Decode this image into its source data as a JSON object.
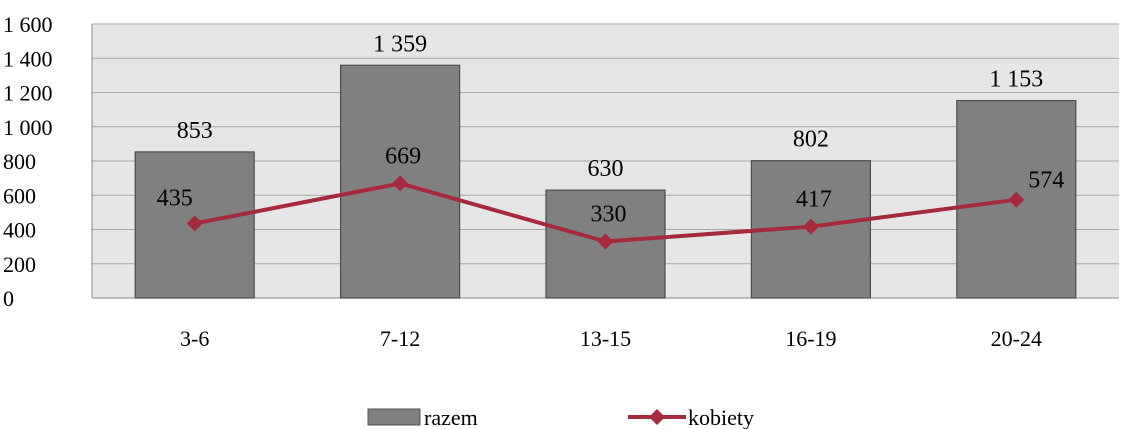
{
  "chart_data": {
    "type": "bar",
    "categories": [
      "3-6",
      "7-12",
      "13-15",
      "16-19",
      "20-24"
    ],
    "series": [
      {
        "name": "razem",
        "type": "bar",
        "values": [
          853,
          1359,
          630,
          802,
          1153
        ],
        "labels": [
          "853",
          "1 359",
          "630",
          "802",
          "1 153"
        ],
        "color": "#808080"
      },
      {
        "name": "kobiety",
        "type": "line",
        "marker": "diamond",
        "values": [
          435,
          669,
          330,
          417,
          574
        ],
        "labels": [
          "435",
          "669",
          "330",
          "417",
          "574"
        ],
        "color": "#A52A3C"
      }
    ],
    "ylim": [
      0,
      1600
    ],
    "yticks": [
      0,
      200,
      400,
      600,
      800,
      1000,
      1200,
      1400,
      1600
    ],
    "ytick_labels": [
      "0",
      "200",
      "400",
      "600",
      "800",
      "1 000",
      "1 200",
      "1 400",
      "1 600"
    ],
    "grid": true,
    "plot_background": "#E6E6E6",
    "legend_position": "bottom"
  }
}
